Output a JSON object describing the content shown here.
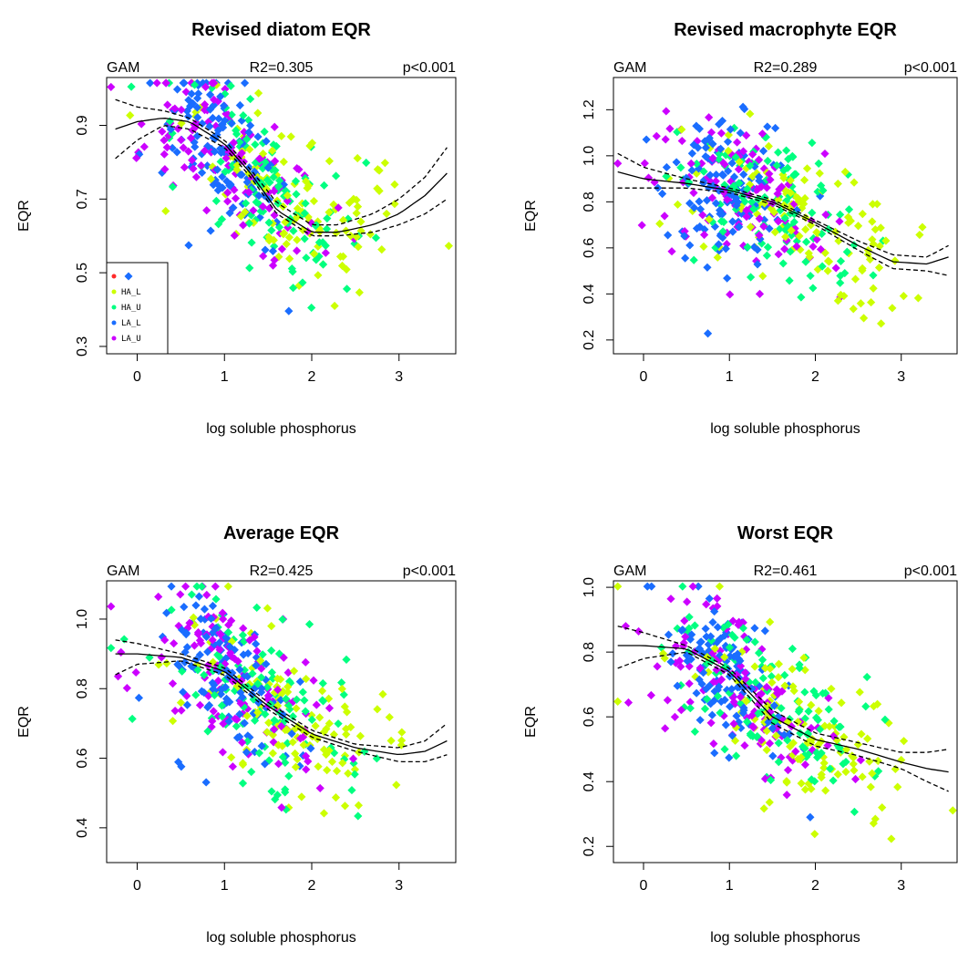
{
  "chart_data": [
    {
      "type": "scatter",
      "title": "Revised diatom EQR",
      "xlabel": "log soluble phosphorus",
      "ylabel": "EQR",
      "stats": {
        "method": "GAM",
        "r2": "R2=0.305",
        "p": "p<0.001"
      },
      "xlim": [
        -0.35,
        3.65
      ],
      "ylim": [
        0.28,
        1.03
      ],
      "xticks": [
        0,
        1,
        2,
        3
      ],
      "yticks": [
        0.3,
        0.5,
        0.7,
        0.9
      ],
      "legend": {
        "position": "bottom-left",
        "entries": [
          "",
          "HA_L",
          "HA_U",
          "LA_L",
          "LA_U"
        ]
      },
      "fit": {
        "x": [
          -0.25,
          0,
          0.3,
          0.6,
          1.0,
          1.3,
          1.6,
          2.0,
          2.3,
          2.7,
          3.0,
          3.3,
          3.55
        ],
        "y": [
          0.89,
          0.91,
          0.92,
          0.91,
          0.85,
          0.77,
          0.67,
          0.61,
          0.61,
          0.63,
          0.66,
          0.71,
          0.77
        ]
      },
      "ci_upper": {
        "x": [
          -0.25,
          0,
          0.3,
          0.6,
          1.0,
          1.3,
          1.6,
          2.0,
          2.3,
          2.7,
          3.0,
          3.3,
          3.55
        ],
        "y": [
          0.97,
          0.95,
          0.94,
          0.92,
          0.86,
          0.78,
          0.69,
          0.63,
          0.63,
          0.66,
          0.7,
          0.76,
          0.84
        ]
      },
      "ci_lower": {
        "x": [
          -0.25,
          0,
          0.3,
          0.6,
          1.0,
          1.3,
          1.6,
          2.0,
          2.3,
          2.7,
          3.0,
          3.3,
          3.55
        ],
        "y": [
          0.81,
          0.86,
          0.9,
          0.89,
          0.84,
          0.76,
          0.66,
          0.6,
          0.6,
          0.61,
          0.63,
          0.66,
          0.7
        ]
      }
    },
    {
      "type": "scatter",
      "title": "Revised macrophyte EQR",
      "xlabel": "log soluble phosphorus",
      "ylabel": "EQR",
      "stats": {
        "method": "GAM",
        "r2": "R2=0.289",
        "p": "p<0.001"
      },
      "xlim": [
        -0.35,
        3.65
      ],
      "ylim": [
        0.14,
        1.34
      ],
      "xticks": [
        0,
        1,
        2,
        3
      ],
      "yticks": [
        0.2,
        0.4,
        0.6,
        0.8,
        1.0,
        1.2
      ],
      "fit": {
        "x": [
          -0.3,
          0,
          0.5,
          1.0,
          1.5,
          2.0,
          2.5,
          2.9,
          3.3,
          3.55
        ],
        "y": [
          0.93,
          0.9,
          0.88,
          0.85,
          0.8,
          0.71,
          0.61,
          0.54,
          0.53,
          0.56
        ]
      },
      "ci_upper": {
        "x": [
          -0.3,
          0,
          0.5,
          1.0,
          1.5,
          2.0,
          2.5,
          2.9,
          3.3,
          3.55
        ],
        "y": [
          1.01,
          0.95,
          0.9,
          0.86,
          0.81,
          0.72,
          0.63,
          0.57,
          0.56,
          0.61
        ]
      },
      "ci_lower": {
        "x": [
          -0.3,
          0,
          0.5,
          1.0,
          1.5,
          2.0,
          2.5,
          2.9,
          3.3,
          3.55
        ],
        "y": [
          0.86,
          0.86,
          0.86,
          0.84,
          0.79,
          0.7,
          0.59,
          0.51,
          0.5,
          0.48
        ]
      }
    },
    {
      "type": "scatter",
      "title": "Average EQR",
      "xlabel": "log soluble phosphorus",
      "ylabel": "EQR",
      "stats": {
        "method": "GAM",
        "r2": "R2=0.425",
        "p": "p<0.001"
      },
      "xlim": [
        -0.35,
        3.65
      ],
      "ylim": [
        0.3,
        1.11
      ],
      "xticks": [
        0,
        1,
        2,
        3
      ],
      "yticks": [
        0.4,
        0.6,
        0.8,
        1.0
      ],
      "fit": {
        "x": [
          -0.25,
          0,
          0.5,
          1.0,
          1.5,
          2.0,
          2.5,
          3.0,
          3.3,
          3.55
        ],
        "y": [
          0.9,
          0.9,
          0.89,
          0.85,
          0.75,
          0.67,
          0.63,
          0.61,
          0.62,
          0.65
        ]
      },
      "ci_upper": {
        "x": [
          -0.25,
          0,
          0.5,
          1.0,
          1.5,
          2.0,
          2.5,
          3.0,
          3.3,
          3.55
        ],
        "y": [
          0.94,
          0.93,
          0.9,
          0.86,
          0.76,
          0.68,
          0.64,
          0.63,
          0.65,
          0.7
        ]
      },
      "ci_lower": {
        "x": [
          -0.25,
          0,
          0.5,
          1.0,
          1.5,
          2.0,
          2.5,
          3.0,
          3.3,
          3.55
        ],
        "y": [
          0.84,
          0.87,
          0.88,
          0.84,
          0.74,
          0.66,
          0.62,
          0.59,
          0.59,
          0.61
        ]
      }
    },
    {
      "type": "scatter",
      "title": "Worst EQR",
      "xlabel": "log soluble phosphorus",
      "ylabel": "EQR",
      "stats": {
        "method": "GAM",
        "r2": "R2=0.461",
        "p": "p<0.001"
      },
      "xlim": [
        -0.35,
        3.65
      ],
      "ylim": [
        0.15,
        1.02
      ],
      "xticks": [
        0,
        1,
        2,
        3
      ],
      "yticks": [
        0.2,
        0.4,
        0.6,
        0.8,
        1.0
      ],
      "fit": {
        "x": [
          -0.3,
          0,
          0.5,
          1.0,
          1.5,
          2.0,
          2.5,
          3.0,
          3.3,
          3.55
        ],
        "y": [
          0.82,
          0.82,
          0.81,
          0.74,
          0.6,
          0.53,
          0.5,
          0.46,
          0.44,
          0.43
        ]
      },
      "ci_upper": {
        "x": [
          -0.3,
          0,
          0.5,
          1.0,
          1.5,
          2.0,
          2.5,
          3.0,
          3.3,
          3.55
        ],
        "y": [
          0.88,
          0.86,
          0.82,
          0.75,
          0.62,
          0.55,
          0.52,
          0.49,
          0.49,
          0.5
        ]
      },
      "ci_lower": {
        "x": [
          -0.3,
          0,
          0.5,
          1.0,
          1.5,
          2.0,
          2.5,
          3.0,
          3.3,
          3.55
        ],
        "y": [
          0.75,
          0.78,
          0.8,
          0.73,
          0.58,
          0.51,
          0.48,
          0.44,
          0.4,
          0.37
        ]
      }
    }
  ],
  "group_colors": {
    "": "#ff2a2a",
    "HA_L": "#ccff00",
    "HA_U": "#00ff80",
    "LA_L": "#1a6dff",
    "LA_U": "#cc00ff"
  }
}
